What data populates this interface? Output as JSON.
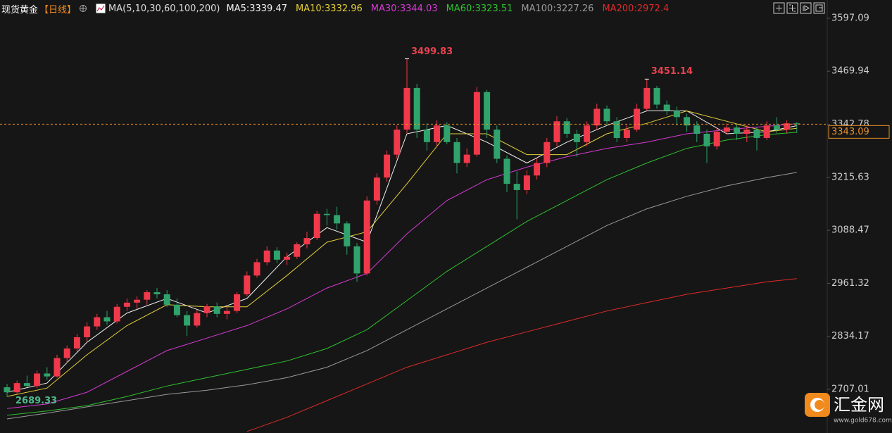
{
  "chart_data": {
    "type": "candlestick",
    "title": "现货黄金",
    "period": "【日线】",
    "indicator": "MA(5,10,30,60,100,200)",
    "ylim": [
      2602.3,
      3610.5
    ],
    "yticks": [
      2707.01,
      2834.17,
      2961.32,
      3088.47,
      3215.63,
      3342.78,
      3469.94,
      3597.09
    ],
    "colors": {
      "up": "#f0394a",
      "down": "#2fa36b"
    },
    "candles": [
      [
        2712,
        2720,
        2689.33,
        2700
      ],
      [
        2700,
        2728,
        2695,
        2722
      ],
      [
        2722,
        2740,
        2712,
        2715
      ],
      [
        2715,
        2752,
        2710,
        2745
      ],
      [
        2745,
        2760,
        2730,
        2738
      ],
      [
        2738,
        2790,
        2735,
        2782
      ],
      [
        2782,
        2812,
        2770,
        2805
      ],
      [
        2805,
        2840,
        2798,
        2832
      ],
      [
        2832,
        2868,
        2820,
        2858
      ],
      [
        2858,
        2888,
        2850,
        2880
      ],
      [
        2880,
        2895,
        2862,
        2870
      ],
      [
        2870,
        2912,
        2865,
        2905
      ],
      [
        2905,
        2925,
        2895,
        2915
      ],
      [
        2915,
        2930,
        2900,
        2922
      ],
      [
        2922,
        2945,
        2910,
        2940
      ],
      [
        2940,
        2950,
        2925,
        2935
      ],
      [
        2935,
        2945,
        2905,
        2910
      ],
      [
        2910,
        2925,
        2880,
        2885
      ],
      [
        2885,
        2895,
        2835,
        2860
      ],
      [
        2860,
        2898,
        2855,
        2890
      ],
      [
        2890,
        2912,
        2880,
        2906
      ],
      [
        2906,
        2915,
        2880,
        2888
      ],
      [
        2888,
        2905,
        2875,
        2895
      ],
      [
        2895,
        2940,
        2890,
        2935
      ],
      [
        2935,
        2990,
        2930,
        2980
      ],
      [
        2980,
        3020,
        2975,
        3012
      ],
      [
        3012,
        3050,
        3005,
        3040
      ],
      [
        3040,
        3048,
        3010,
        3018
      ],
      [
        3018,
        3035,
        3005,
        3025
      ],
      [
        3025,
        3060,
        3020,
        3055
      ],
      [
        3055,
        3085,
        3045,
        3070
      ],
      [
        3070,
        3135,
        3065,
        3128
      ],
      [
        3128,
        3140,
        3100,
        3125
      ],
      [
        3125,
        3145,
        3090,
        3105
      ],
      [
        3105,
        3110,
        3030,
        3050
      ],
      [
        3050,
        3058,
        2965,
        2985
      ],
      [
        2985,
        3170,
        2980,
        3160
      ],
      [
        3160,
        3225,
        3150,
        3215
      ],
      [
        3215,
        3280,
        3205,
        3270
      ],
      [
        3270,
        3340,
        3260,
        3330
      ],
      [
        3330,
        3499.83,
        3320,
        3430
      ],
      [
        3430,
        3440,
        3310,
        3330
      ],
      [
        3330,
        3345,
        3280,
        3300
      ],
      [
        3300,
        3352,
        3290,
        3340
      ],
      [
        3340,
        3348,
        3295,
        3300
      ],
      [
        3300,
        3310,
        3225,
        3250
      ],
      [
        3250,
        3285,
        3240,
        3270
      ],
      [
        3270,
        3432,
        3265,
        3420
      ],
      [
        3420,
        3425,
        3310,
        3330
      ],
      [
        3330,
        3340,
        3250,
        3260
      ],
      [
        3260,
        3268,
        3180,
        3200
      ],
      [
        3200,
        3230,
        3115,
        3185
      ],
      [
        3185,
        3232,
        3175,
        3220
      ],
      [
        3220,
        3262,
        3210,
        3250
      ],
      [
        3250,
        3310,
        3240,
        3300
      ],
      [
        3300,
        3362,
        3290,
        3350
      ],
      [
        3350,
        3358,
        3310,
        3320
      ],
      [
        3320,
        3330,
        3265,
        3300
      ],
      [
        3300,
        3350,
        3290,
        3340
      ],
      [
        3340,
        3392,
        3330,
        3380
      ],
      [
        3380,
        3388,
        3340,
        3350
      ],
      [
        3350,
        3360,
        3300,
        3310
      ],
      [
        3310,
        3340,
        3300,
        3330
      ],
      [
        3330,
        3392,
        3325,
        3380
      ],
      [
        3380,
        3451.14,
        3375,
        3430
      ],
      [
        3430,
        3435,
        3380,
        3390
      ],
      [
        3390,
        3400,
        3365,
        3375
      ],
      [
        3375,
        3385,
        3340,
        3360
      ],
      [
        3360,
        3368,
        3325,
        3340
      ],
      [
        3340,
        3350,
        3300,
        3320
      ],
      [
        3320,
        3330,
        3250,
        3290
      ],
      [
        3290,
        3335,
        3282,
        3325
      ],
      [
        3325,
        3345,
        3318,
        3335
      ],
      [
        3335,
        3342,
        3305,
        3320
      ],
      [
        3320,
        3340,
        3300,
        3330
      ],
      [
        3330,
        3335,
        3280,
        3310
      ],
      [
        3310,
        3350,
        3305,
        3340
      ],
      [
        3340,
        3360,
        3322,
        3330
      ],
      [
        3330,
        3352,
        3322,
        3345
      ],
      [
        3345,
        3348,
        3322,
        3343.09
      ]
    ],
    "series": [
      {
        "name": "MA5:3339.47",
        "color": "#f2f2f2",
        "x": [
          0,
          4,
          8,
          12,
          16,
          20,
          24,
          28,
          32,
          36,
          40,
          44,
          48,
          52,
          56,
          60,
          64,
          68,
          72,
          76,
          79
        ],
        "values": [
          2700,
          2722,
          2820,
          2890,
          2925,
          2890,
          2925,
          3025,
          3095,
          3060,
          3320,
          3340,
          3300,
          3250,
          3300,
          3340,
          3375,
          3375,
          3320,
          3325,
          3339.47
        ]
      },
      {
        "name": "MA10:3332.96",
        "color": "#e6d03a",
        "x": [
          0,
          4,
          8,
          12,
          16,
          20,
          24,
          28,
          32,
          36,
          40,
          44,
          48,
          52,
          56,
          60,
          64,
          68,
          72,
          76,
          79
        ],
        "values": [
          2690,
          2710,
          2790,
          2860,
          2910,
          2905,
          2905,
          2980,
          3060,
          3085,
          3200,
          3320,
          3320,
          3270,
          3270,
          3320,
          3345,
          3375,
          3350,
          3325,
          3332.96
        ]
      },
      {
        "name": "MA30:3344.03",
        "color": "#d63ad6",
        "x": [
          0,
          4,
          8,
          12,
          16,
          20,
          24,
          28,
          32,
          36,
          40,
          44,
          48,
          52,
          56,
          60,
          64,
          68,
          72,
          76,
          79
        ],
        "values": [
          2661,
          2672,
          2700,
          2750,
          2800,
          2830,
          2860,
          2900,
          2950,
          2985,
          3080,
          3160,
          3210,
          3240,
          3265,
          3285,
          3300,
          3320,
          3330,
          3338,
          3344.03
        ]
      },
      {
        "name": "MA60:3323.51",
        "color": "#2fc12f",
        "x": [
          0,
          4,
          8,
          12,
          16,
          20,
          24,
          28,
          32,
          36,
          40,
          44,
          48,
          52,
          56,
          60,
          64,
          68,
          72,
          76,
          79
        ],
        "values": [
          2645,
          2655,
          2668,
          2690,
          2715,
          2735,
          2755,
          2775,
          2805,
          2850,
          2920,
          2990,
          3050,
          3110,
          3160,
          3210,
          3250,
          3285,
          3305,
          3318,
          3323.51
        ]
      },
      {
        "name": "MA100:3227.26",
        "color": "#9a9a9a",
        "x": [
          0,
          4,
          8,
          12,
          16,
          20,
          24,
          28,
          32,
          36,
          40,
          44,
          48,
          52,
          56,
          60,
          64,
          68,
          72,
          76,
          79
        ],
        "values": [
          2636,
          2650,
          2665,
          2680,
          2695,
          2705,
          2718,
          2735,
          2760,
          2800,
          2850,
          2900,
          2950,
          3000,
          3050,
          3100,
          3140,
          3170,
          3195,
          3215,
          3227.26
        ]
      },
      {
        "name": "MA200:2972.4",
        "color": "#e02a2a",
        "x": [
          24,
          28,
          32,
          36,
          40,
          44,
          48,
          52,
          56,
          60,
          64,
          68,
          72,
          76,
          79
        ],
        "values": [
          2606,
          2640,
          2680,
          2720,
          2760,
          2790,
          2820,
          2845,
          2870,
          2895,
          2915,
          2935,
          2950,
          2965,
          2972.4
        ]
      }
    ]
  },
  "watermark": {
    "name": "汇金网",
    "url": "www.gold678.com"
  }
}
